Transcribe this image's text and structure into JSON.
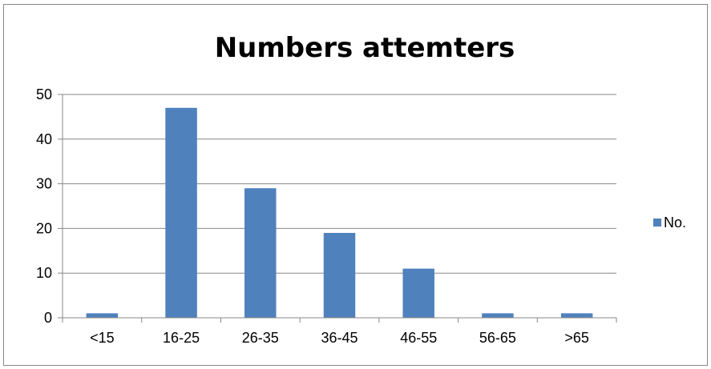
{
  "chart_data": {
    "type": "bar",
    "title": "Numbers attemters",
    "xlabel": "",
    "ylabel": "",
    "categories": [
      "<15",
      "16-25",
      "26-35",
      "36-45",
      "46-55",
      "56-65",
      ">65"
    ],
    "series": [
      {
        "name": "No.",
        "values": [
          1,
          47,
          29,
          19,
          11,
          1,
          1
        ]
      }
    ],
    "ylim": [
      0,
      50
    ],
    "yticks": [
      0,
      10,
      20,
      30,
      40,
      50
    ],
    "grid": true,
    "legend": "right",
    "colors": {
      "bar": "#4F81BD",
      "grid": "#878787",
      "axis": "#878787",
      "border": "#868686"
    }
  }
}
